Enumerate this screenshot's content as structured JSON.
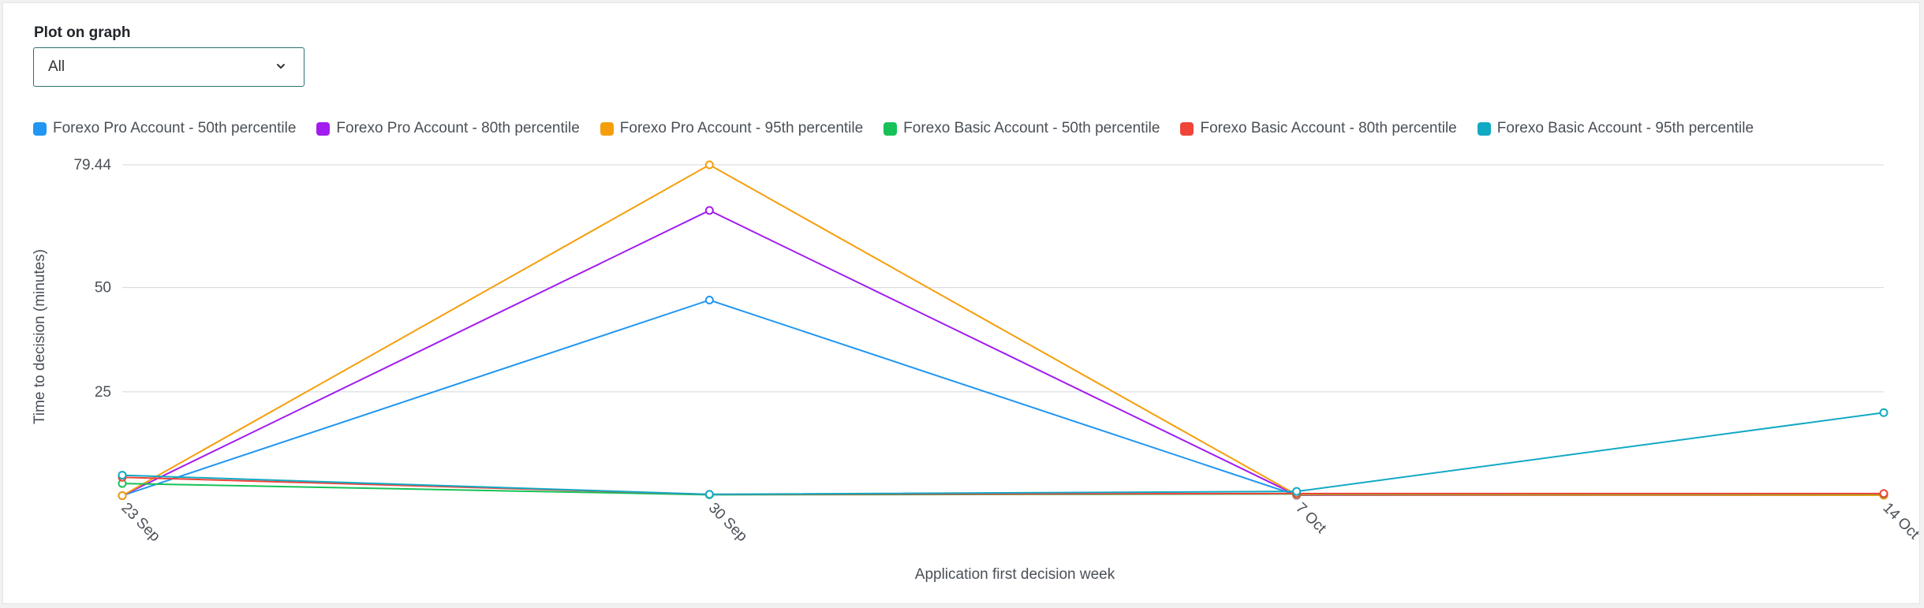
{
  "filter": {
    "label": "Plot on graph",
    "selected": "All"
  },
  "chart_data": {
    "type": "line",
    "x": [
      "23 Sep",
      "30 Sep",
      "7 Oct",
      "14 Oct"
    ],
    "xlabel": "Application first decision week",
    "ylabel": "Time to decision (minutes)",
    "ylim": [
      0,
      79.44
    ],
    "y_ticks": [
      25,
      50,
      79.44
    ],
    "y_tick_labels": [
      "25",
      "50",
      "79.44"
    ],
    "grid": true,
    "legend_position": "top",
    "series": [
      {
        "name": "Forexo Pro Account - 50th percentile",
        "color": "#2196f3",
        "values": [
          0.1,
          47,
          0.2,
          0.3
        ]
      },
      {
        "name": "Forexo Pro Account - 80th percentile",
        "color": "#a21cf0",
        "values": [
          0.1,
          68.5,
          0.2,
          0.2
        ]
      },
      {
        "name": "Forexo Pro Account - 95th percentile",
        "color": "#f59e0b",
        "values": [
          0.1,
          79.44,
          0.3,
          0.2
        ]
      },
      {
        "name": "Forexo Basic Account - 50th percentile",
        "color": "#16c257",
        "values": [
          3,
          0.3,
          0.5,
          0.5
        ]
      },
      {
        "name": "Forexo Basic Account - 80th percentile",
        "color": "#ef4437",
        "values": [
          4.5,
          0.4,
          0.6,
          0.6
        ]
      },
      {
        "name": "Forexo Basic Account - 95th percentile",
        "color": "#12a9c4",
        "values": [
          5,
          0.4,
          1.1,
          20
        ]
      }
    ]
  }
}
